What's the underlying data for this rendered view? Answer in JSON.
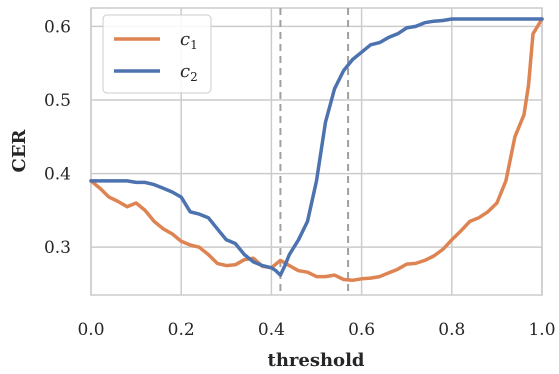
{
  "chart_data": {
    "type": "line",
    "title": "",
    "xlabel": "threshold",
    "ylabel": "CER",
    "xlim": [
      0.0,
      1.0
    ],
    "ylim": [
      0.235,
      0.625
    ],
    "xticks": [
      0.0,
      0.2,
      0.4,
      0.6,
      0.8,
      1.0
    ],
    "xtick_labels": [
      "0.0",
      "0.2",
      "0.4",
      "0.6",
      "0.8",
      "1.0"
    ],
    "yticks": [
      0.3,
      0.4,
      0.5,
      0.6
    ],
    "ytick_labels": [
      "0.3",
      "0.4",
      "0.5",
      "0.6"
    ],
    "grid": true,
    "legend": {
      "placement": "top-left"
    },
    "vlines": [
      0.42,
      0.57
    ],
    "series": [
      {
        "name": "c",
        "subscript": "1",
        "color": "#dd8452",
        "x": [
          0.0,
          0.02,
          0.04,
          0.06,
          0.08,
          0.1,
          0.12,
          0.14,
          0.16,
          0.18,
          0.2,
          0.22,
          0.24,
          0.26,
          0.28,
          0.3,
          0.32,
          0.34,
          0.36,
          0.38,
          0.4,
          0.42,
          0.44,
          0.46,
          0.48,
          0.5,
          0.52,
          0.54,
          0.56,
          0.58,
          0.6,
          0.62,
          0.64,
          0.66,
          0.68,
          0.7,
          0.72,
          0.74,
          0.76,
          0.78,
          0.8,
          0.82,
          0.84,
          0.86,
          0.88,
          0.9,
          0.92,
          0.94,
          0.96,
          0.97,
          0.98,
          1.0
        ],
        "y": [
          0.39,
          0.38,
          0.368,
          0.362,
          0.355,
          0.36,
          0.35,
          0.335,
          0.325,
          0.318,
          0.308,
          0.303,
          0.3,
          0.29,
          0.278,
          0.275,
          0.276,
          0.283,
          0.285,
          0.274,
          0.272,
          0.282,
          0.275,
          0.268,
          0.266,
          0.26,
          0.26,
          0.262,
          0.256,
          0.255,
          0.257,
          0.258,
          0.26,
          0.265,
          0.27,
          0.277,
          0.278,
          0.282,
          0.288,
          0.297,
          0.31,
          0.322,
          0.335,
          0.34,
          0.348,
          0.36,
          0.39,
          0.45,
          0.48,
          0.52,
          0.59,
          0.61
        ]
      },
      {
        "name": "c",
        "subscript": "2",
        "color": "#4c72b0",
        "x": [
          0.0,
          0.02,
          0.04,
          0.06,
          0.08,
          0.1,
          0.12,
          0.14,
          0.16,
          0.18,
          0.2,
          0.22,
          0.24,
          0.26,
          0.28,
          0.3,
          0.32,
          0.34,
          0.36,
          0.38,
          0.4,
          0.41,
          0.42,
          0.43,
          0.44,
          0.46,
          0.48,
          0.5,
          0.52,
          0.54,
          0.56,
          0.58,
          0.6,
          0.62,
          0.64,
          0.66,
          0.68,
          0.7,
          0.72,
          0.74,
          0.76,
          0.78,
          0.8,
          0.82,
          0.84,
          0.86,
          0.88,
          0.9,
          0.92,
          0.94,
          0.96,
          0.98,
          1.0
        ],
        "y": [
          0.39,
          0.39,
          0.39,
          0.39,
          0.39,
          0.388,
          0.388,
          0.385,
          0.38,
          0.375,
          0.368,
          0.348,
          0.345,
          0.34,
          0.325,
          0.31,
          0.305,
          0.29,
          0.28,
          0.275,
          0.272,
          0.268,
          0.262,
          0.275,
          0.29,
          0.31,
          0.335,
          0.39,
          0.47,
          0.515,
          0.54,
          0.555,
          0.565,
          0.575,
          0.578,
          0.585,
          0.59,
          0.598,
          0.6,
          0.605,
          0.607,
          0.608,
          0.61,
          0.61,
          0.61,
          0.61,
          0.61,
          0.61,
          0.61,
          0.61,
          0.61,
          0.61,
          0.61
        ]
      }
    ]
  }
}
